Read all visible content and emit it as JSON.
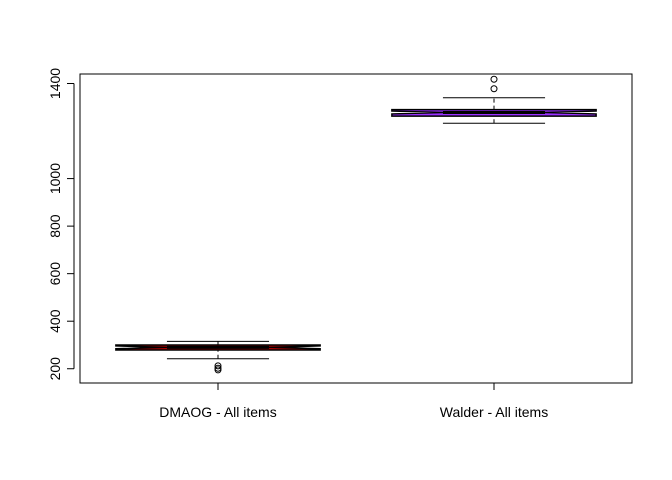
{
  "chart_data": {
    "type": "boxplot",
    "title": "",
    "xlabel": "",
    "ylabel": "",
    "ylim": [
      140,
      1440
    ],
    "yticks": [
      200,
      400,
      600,
      800,
      1000,
      1400
    ],
    "notched": true,
    "grid": false,
    "legend": "none",
    "categories": [
      "DMAOG - All items",
      "Walder - All items"
    ],
    "boxes": [
      {
        "category": "DMAOG - All items",
        "color": "#cc0000",
        "whisker_low": 242,
        "q1": 279,
        "median": 290,
        "q3": 300,
        "whisker_high": 315,
        "notch_low": 284,
        "notch_high": 296,
        "outliers": [
          195,
          202,
          212
        ]
      },
      {
        "category": "Walder - All items",
        "color": "#9b30ff",
        "whisker_low": 1233,
        "q1": 1263,
        "median": 1278,
        "q3": 1290,
        "whisker_high": 1340,
        "notch_low": 1272,
        "notch_high": 1284,
        "outliers": [
          1378,
          1418
        ]
      }
    ]
  }
}
